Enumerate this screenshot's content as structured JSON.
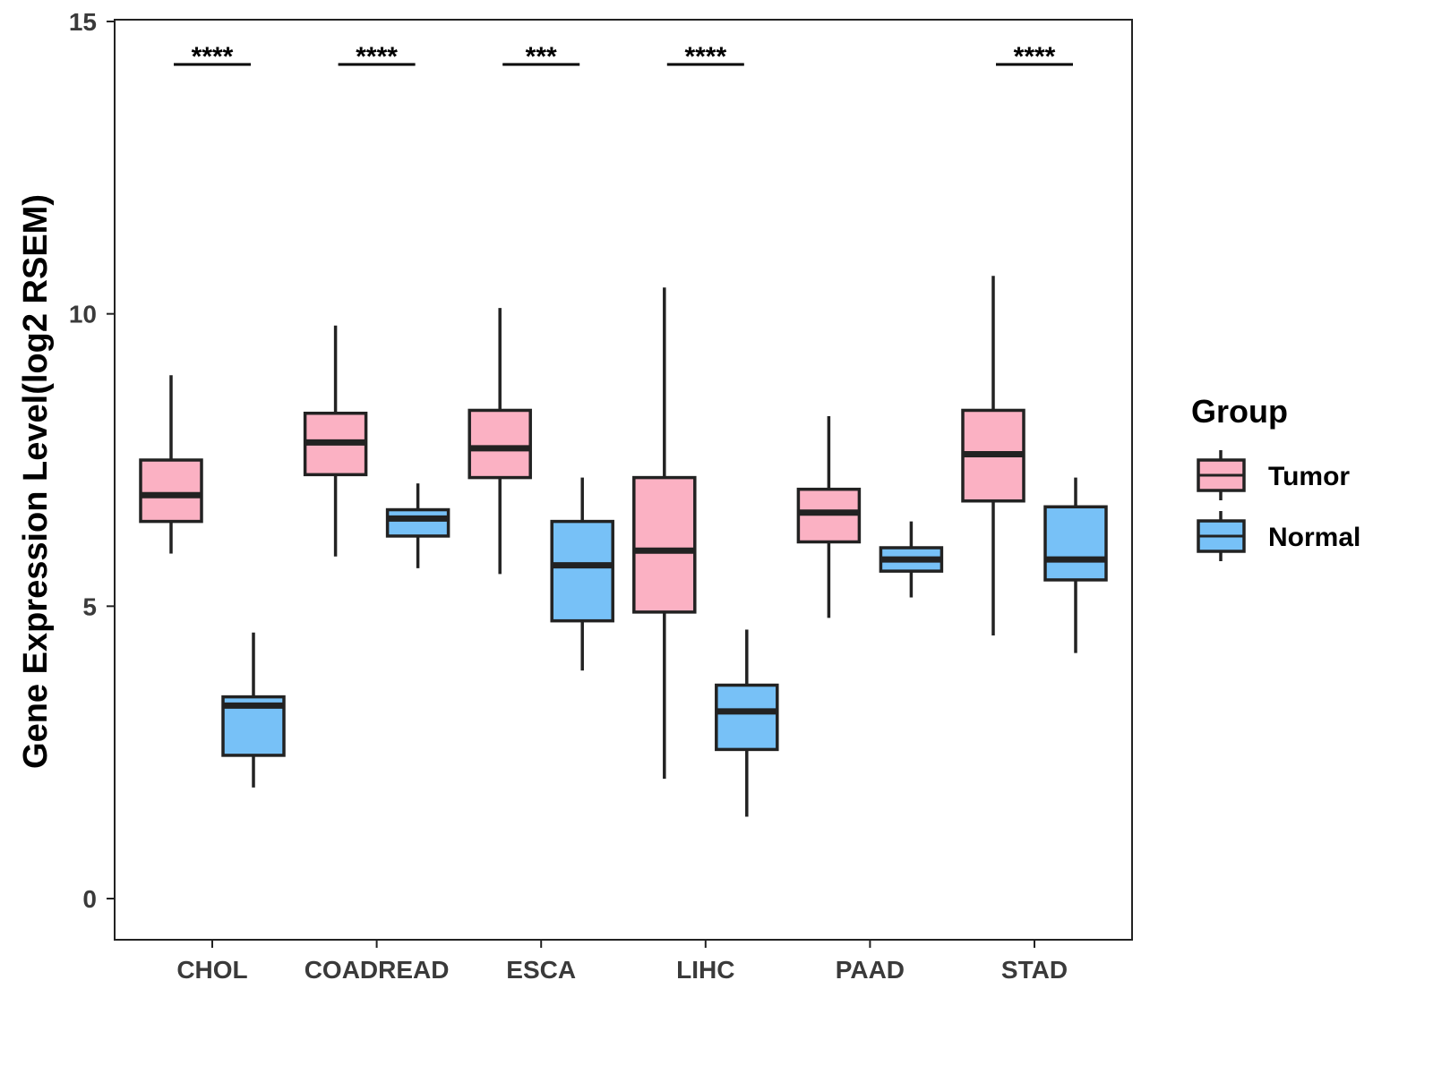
{
  "chart_data": {
    "type": "box",
    "title": "",
    "xlabel": "",
    "ylabel": "Gene Expression Level(log2 RSEM)",
    "ylim": [
      -0.7,
      15
    ],
    "yticks": [
      0,
      5,
      10,
      15
    ],
    "ytick_labels": [
      "0",
      "5",
      "10",
      "15"
    ],
    "grid": false,
    "categories": [
      "CHOL",
      "COADREAD",
      "ESCA",
      "LIHC",
      "PAAD",
      "STAD"
    ],
    "legend": {
      "title": "Group",
      "position": "right",
      "entries": [
        "Tumor",
        "Normal"
      ]
    },
    "series": [
      {
        "name": "Tumor",
        "color": "#FBB1C3",
        "boxes": [
          {
            "category": "CHOL",
            "min": 5.9,
            "q1": 6.45,
            "median": 6.9,
            "q3": 7.5,
            "max": 8.95
          },
          {
            "category": "COADREAD",
            "min": 5.85,
            "q1": 7.25,
            "median": 7.8,
            "q3": 8.3,
            "max": 9.8
          },
          {
            "category": "ESCA",
            "min": 5.55,
            "q1": 7.2,
            "median": 7.7,
            "q3": 8.35,
            "max": 10.1
          },
          {
            "category": "LIHC",
            "min": 2.05,
            "q1": 4.9,
            "median": 5.95,
            "q3": 7.2,
            "max": 10.45
          },
          {
            "category": "PAAD",
            "min": 4.8,
            "q1": 6.1,
            "median": 6.6,
            "q3": 7.0,
            "max": 8.25
          },
          {
            "category": "STAD",
            "min": 4.5,
            "q1": 6.8,
            "median": 7.6,
            "q3": 8.35,
            "max": 10.65
          }
        ]
      },
      {
        "name": "Normal",
        "color": "#77C1F7",
        "boxes": [
          {
            "category": "CHOL",
            "min": 1.9,
            "q1": 2.45,
            "median": 3.3,
            "q3": 3.45,
            "max": 4.55
          },
          {
            "category": "COADREAD",
            "min": 5.65,
            "q1": 6.2,
            "median": 6.5,
            "q3": 6.65,
            "max": 7.1
          },
          {
            "category": "ESCA",
            "min": 3.9,
            "q1": 4.75,
            "median": 5.7,
            "q3": 6.45,
            "max": 7.2
          },
          {
            "category": "LIHC",
            "min": 1.4,
            "q1": 2.55,
            "median": 3.2,
            "q3": 3.65,
            "max": 4.6
          },
          {
            "category": "PAAD",
            "min": 5.15,
            "q1": 5.6,
            "median": 5.8,
            "q3": 6.0,
            "max": 6.45
          },
          {
            "category": "STAD",
            "min": 4.2,
            "q1": 5.45,
            "median": 5.8,
            "q3": 6.7,
            "max": 7.2
          }
        ]
      }
    ],
    "significance": [
      {
        "category": "CHOL",
        "label": "****"
      },
      {
        "category": "COADREAD",
        "label": "****"
      },
      {
        "category": "ESCA",
        "label": "***"
      },
      {
        "category": "LIHC",
        "label": "****"
      },
      {
        "category": "STAD",
        "label": "****"
      }
    ]
  }
}
